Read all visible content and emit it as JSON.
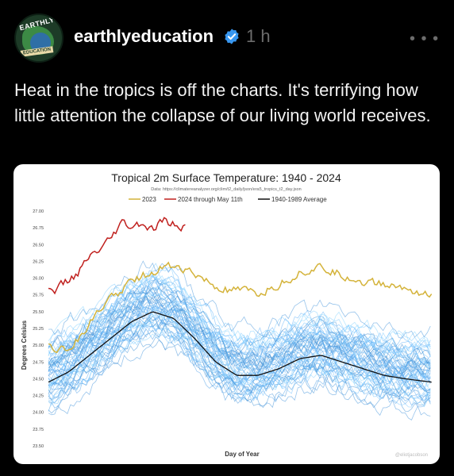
{
  "post": {
    "username": "earthlyeducation",
    "time": "1 h",
    "more_label": "• • •",
    "avatar": {
      "line1": "EARTHLY",
      "line2": "EDUCATION"
    },
    "text": "Heat in the tropics is off the charts. It's terrifying how little attention the collapse of our living world receives."
  },
  "colors": {
    "background": "#000000",
    "verified": "#3897f0",
    "series_2023": "#d4b33a",
    "series_2024": "#c0201e",
    "series_avg": "#111111",
    "history": "#7fa6d4"
  },
  "chart_data": {
    "type": "line",
    "title": "Tropical 2m Surface Temperature: 1940 - 2024",
    "subtitle": "Data: https://climatereanalyzer.org/clim/t2_daily/json/era5_tropics_t2_day.json",
    "xlabel": "Day of Year",
    "ylabel": "Degrees Celsius",
    "credit": "@eliotjacobson",
    "ylim": [
      23.5,
      27.0
    ],
    "xlim": [
      1,
      366
    ],
    "yticks": [
      "27.00",
      "26.75",
      "26.50",
      "26.25",
      "26.00",
      "25.75",
      "25.50",
      "25.25",
      "25.00",
      "24.75",
      "24.50",
      "24.25",
      "24.00",
      "23.75",
      "23.50"
    ],
    "legend_position": "top-center",
    "series": [
      {
        "name": "2023",
        "x": [
          1,
          20,
          40,
          60,
          80,
          100,
          120,
          140,
          160,
          180,
          200,
          220,
          240,
          260,
          280,
          300,
          320,
          340,
          365
        ],
        "values": [
          25.0,
          24.95,
          25.3,
          25.7,
          25.95,
          26.1,
          26.2,
          26.05,
          25.85,
          25.8,
          25.75,
          25.9,
          26.1,
          26.15,
          26.05,
          25.95,
          25.9,
          25.85,
          25.75
        ]
      },
      {
        "name": "2024 through May 11th",
        "x": [
          1,
          10,
          20,
          30,
          40,
          50,
          60,
          70,
          80,
          90,
          100,
          110,
          120,
          132
        ],
        "values": [
          25.8,
          25.85,
          25.95,
          26.1,
          26.3,
          26.4,
          26.55,
          26.8,
          26.75,
          26.8,
          26.7,
          26.85,
          26.8,
          26.75
        ]
      },
      {
        "name": "1940-1989 Average",
        "x": [
          1,
          20,
          40,
          60,
          80,
          100,
          120,
          140,
          160,
          180,
          200,
          220,
          240,
          260,
          280,
          300,
          320,
          340,
          365
        ],
        "values": [
          24.45,
          24.6,
          24.85,
          25.1,
          25.35,
          25.5,
          25.4,
          25.1,
          24.75,
          24.55,
          24.55,
          24.65,
          24.8,
          24.85,
          24.75,
          24.65,
          24.55,
          24.5,
          24.45
        ]
      }
    ]
  }
}
